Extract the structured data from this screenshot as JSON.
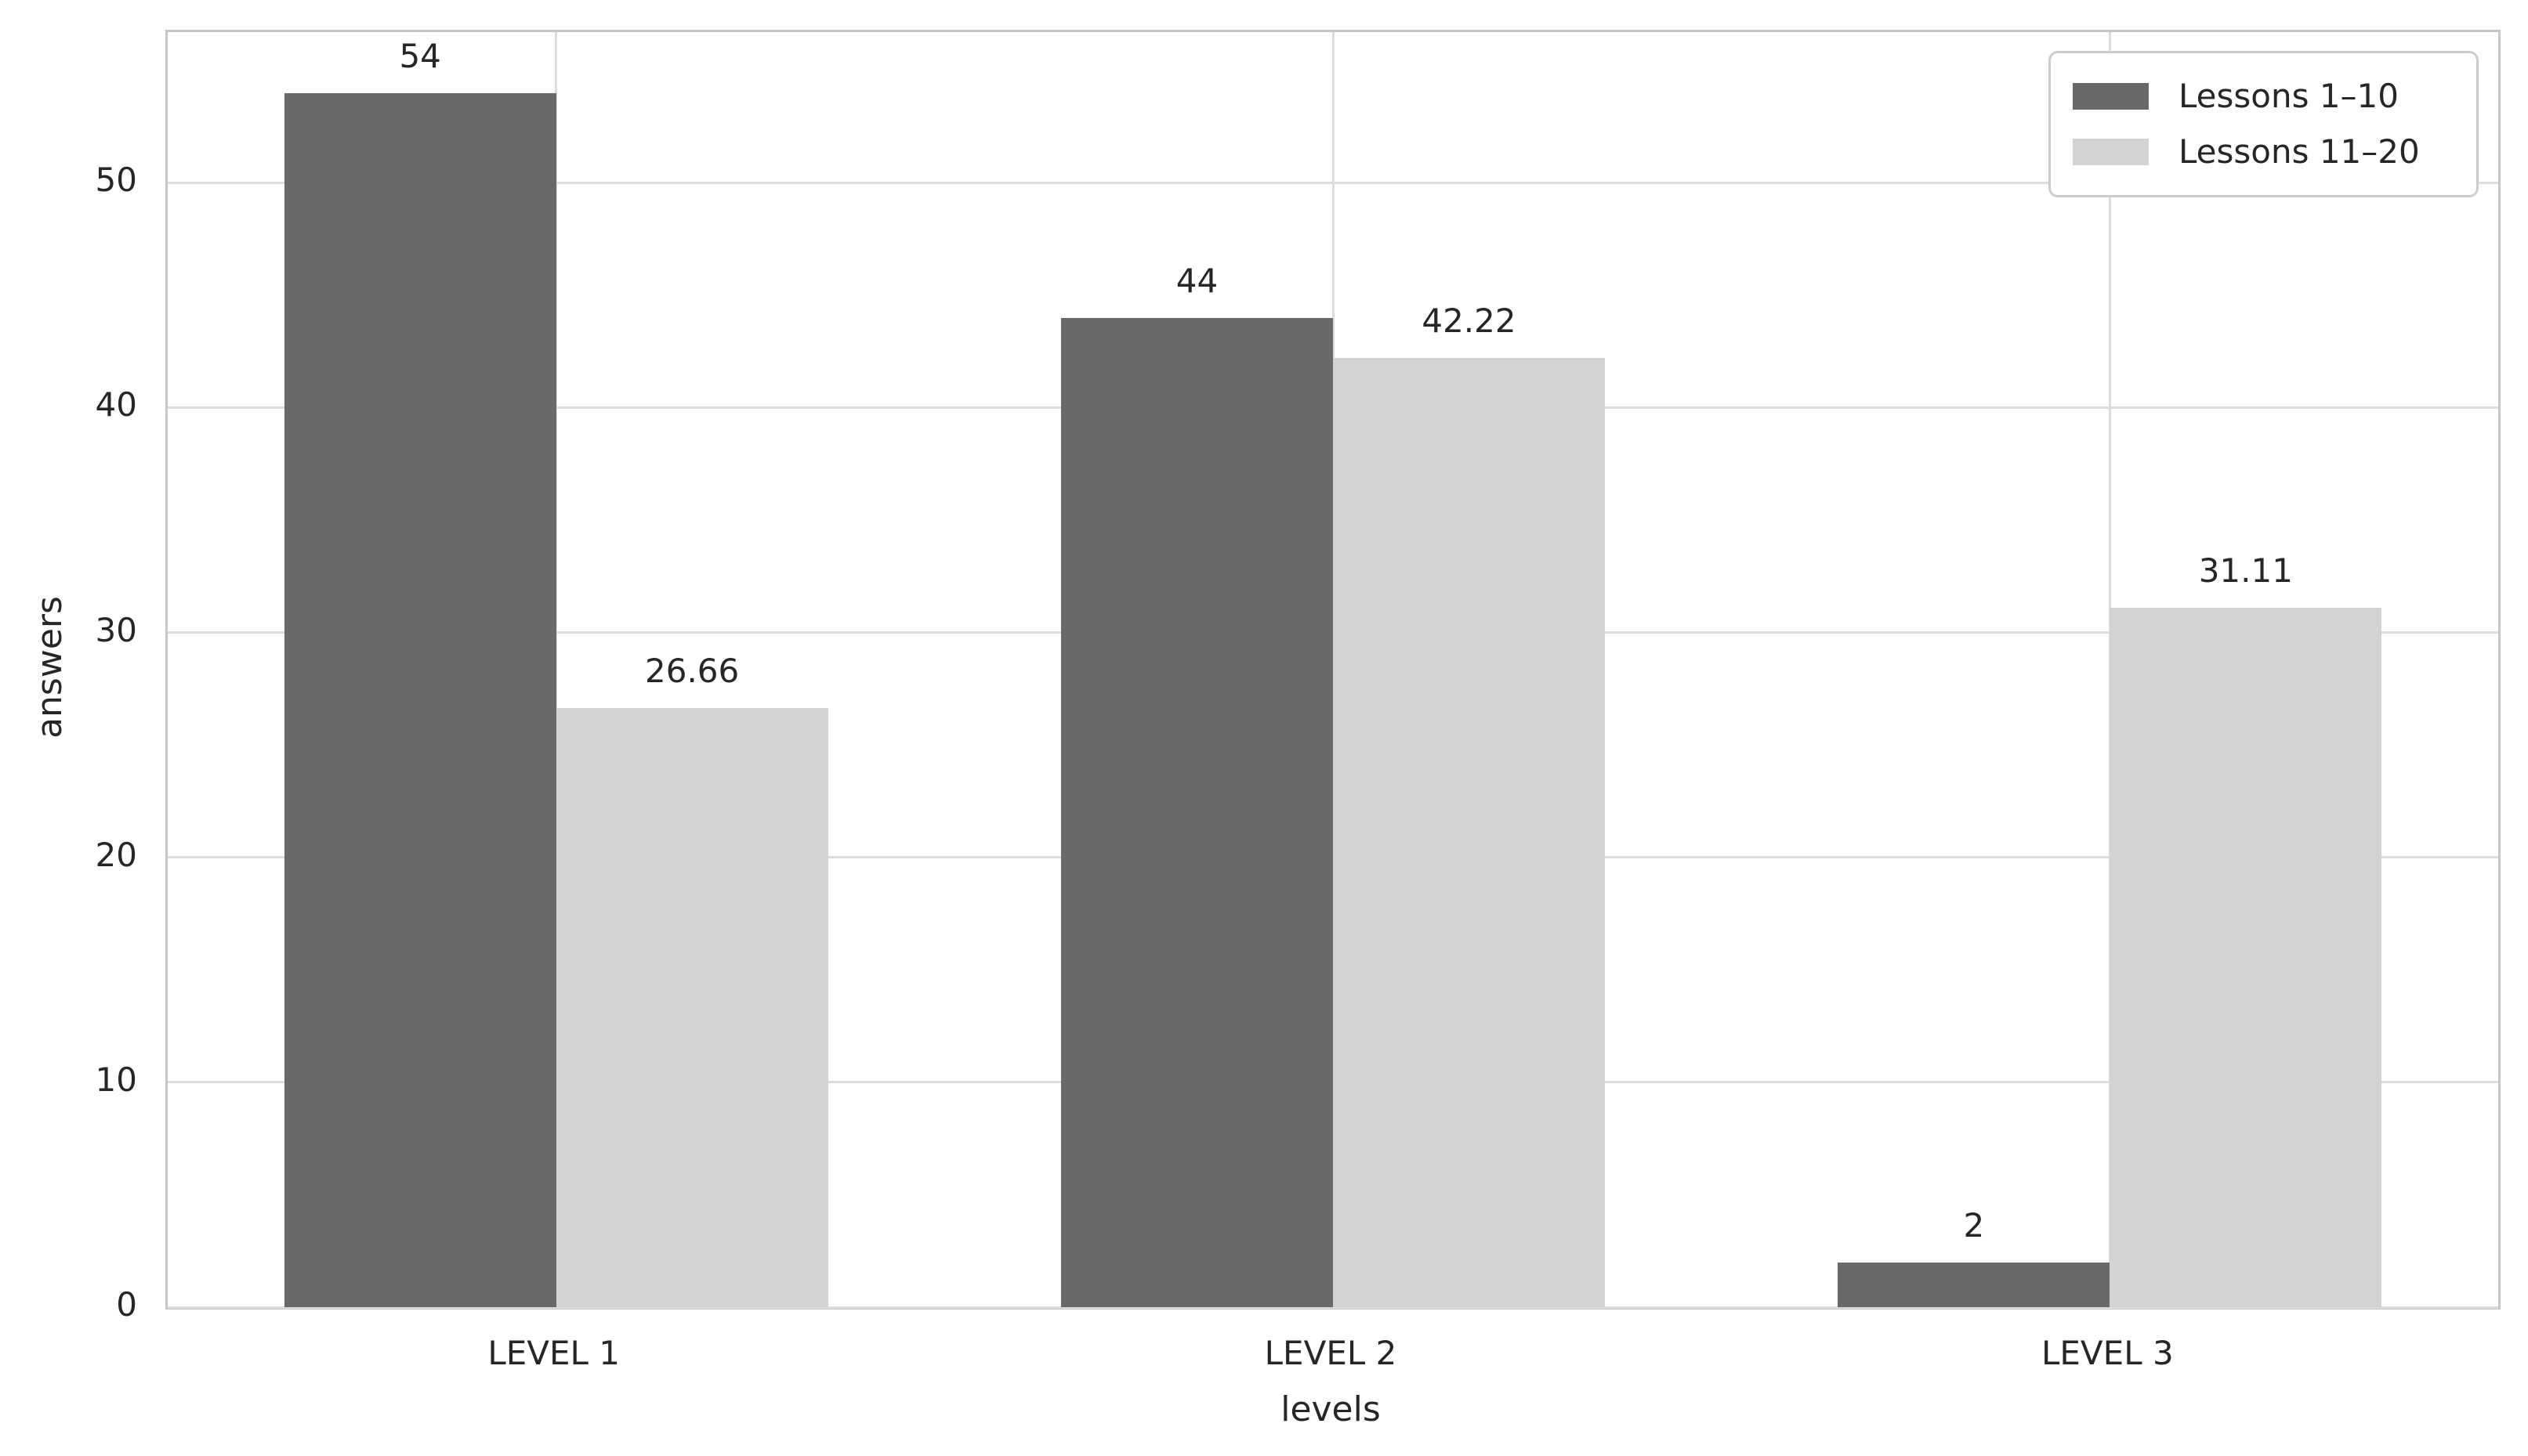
{
  "chart_data": {
    "type": "bar",
    "title": "",
    "xlabel": "levels",
    "ylabel": "answers",
    "categories": [
      "LEVEL 1",
      "LEVEL 2",
      "LEVEL 3"
    ],
    "series": [
      {
        "name": "Lessons 1–10",
        "color": "#696969",
        "values": [
          54,
          44,
          2
        ],
        "value_labels": [
          "54",
          "44",
          "2"
        ]
      },
      {
        "name": "Lessons 11–20",
        "color": "#d3d3d3",
        "values": [
          26.66,
          42.22,
          31.11
        ],
        "value_labels": [
          "26.66",
          "42.22",
          "31.11"
        ]
      }
    ],
    "yticks": [
      0,
      10,
      20,
      30,
      40,
      50
    ],
    "ytick_labels": [
      "0",
      "10",
      "20",
      "30",
      "40",
      "50"
    ],
    "ylim": [
      0,
      56.7
    ],
    "grid": true,
    "legend_position": "upper right",
    "bar_group_width": 0.7,
    "colors": {
      "bar_dark": "#696969",
      "bar_light": "#d3d3d3",
      "grid": "#dcdcdc",
      "spine": "#c6c6c6",
      "text": "#262626",
      "background": "#ffffff"
    }
  }
}
